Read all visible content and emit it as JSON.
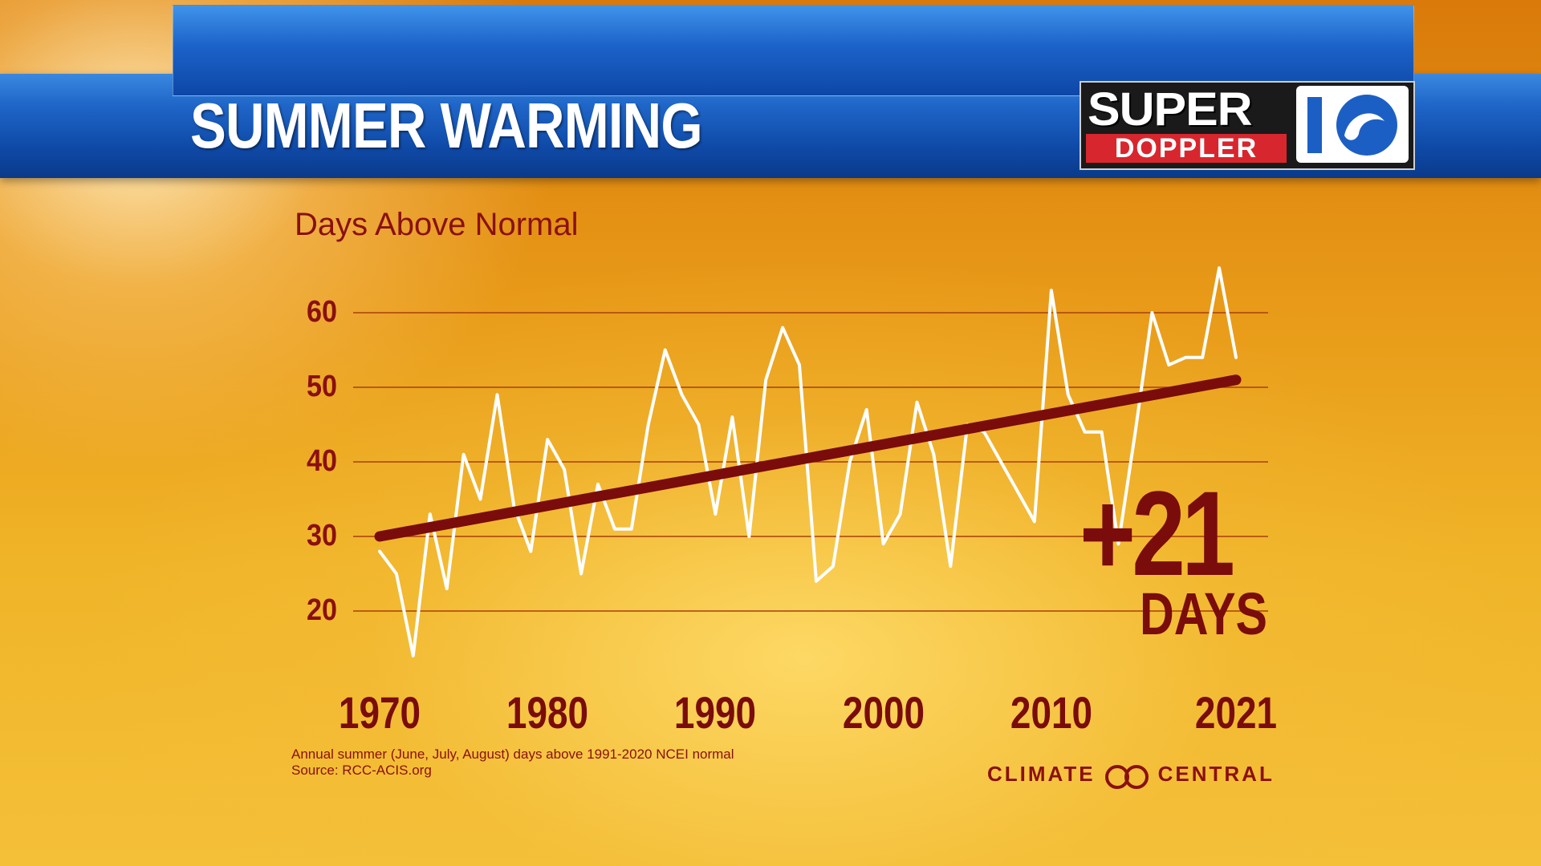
{
  "header": {
    "title": "SUMMER WARMING",
    "logo_line1": "SUPER",
    "logo_line2": "DOPPLER",
    "logo_number": "10"
  },
  "chart_data": {
    "type": "line",
    "title": "Days Above Normal",
    "ylabel": "",
    "xlabel": "",
    "ylim": [
      14,
      67
    ],
    "xlim": [
      1970,
      2021
    ],
    "yticks": [
      20,
      30,
      40,
      50,
      60
    ],
    "ytick_labels": [
      "20",
      "30",
      "40",
      "50",
      "60"
    ],
    "xticks": [
      1970,
      1980,
      1990,
      2000,
      2010,
      2021
    ],
    "xtick_labels": [
      "1970",
      "1980",
      "1990",
      "2000",
      "2010",
      "2021"
    ],
    "grid": true,
    "series": [
      {
        "name": "",
        "color": "#ffffff",
        "x": [
          1970,
          1971,
          1972,
          1973,
          1974,
          1975,
          1976,
          1977,
          1978,
          1979,
          1980,
          1981,
          1982,
          1983,
          1984,
          1985,
          1986,
          1987,
          1988,
          1989,
          1990,
          1991,
          1992,
          1993,
          1994,
          1995,
          1996,
          1997,
          1998,
          1999,
          2000,
          2001,
          2002,
          2003,
          2004,
          2005,
          2006,
          2007,
          2008,
          2009,
          2010,
          2011,
          2012,
          2013,
          2014,
          2015,
          2016,
          2017,
          2018,
          2019,
          2020,
          2021
        ],
        "values": [
          28,
          25,
          14,
          33,
          23,
          41,
          35,
          49,
          34,
          28,
          43,
          39,
          25,
          37,
          31,
          31,
          45,
          55,
          49,
          45,
          33,
          46,
          30,
          51,
          58,
          53,
          24,
          26,
          40,
          47,
          29,
          33,
          48,
          41,
          26,
          45,
          44,
          40,
          36,
          32,
          63,
          49,
          44,
          44,
          29,
          44,
          60,
          53,
          54,
          54,
          66,
          54
        ]
      },
      {
        "name": "",
        "color": "#7a0c0c",
        "trend": true,
        "x": [
          1970,
          2021
        ],
        "values": [
          30,
          51
        ]
      }
    ],
    "annotation_value": "+21",
    "annotation_unit": "DAYS",
    "footnote_line1": "Annual summer (June, July, August) days above 1991-2020 NCEI normal",
    "footnote_line2": "Source: RCC-ACIS.org"
  },
  "credit": {
    "left": "CLIMATE",
    "right": "CENTRAL"
  }
}
